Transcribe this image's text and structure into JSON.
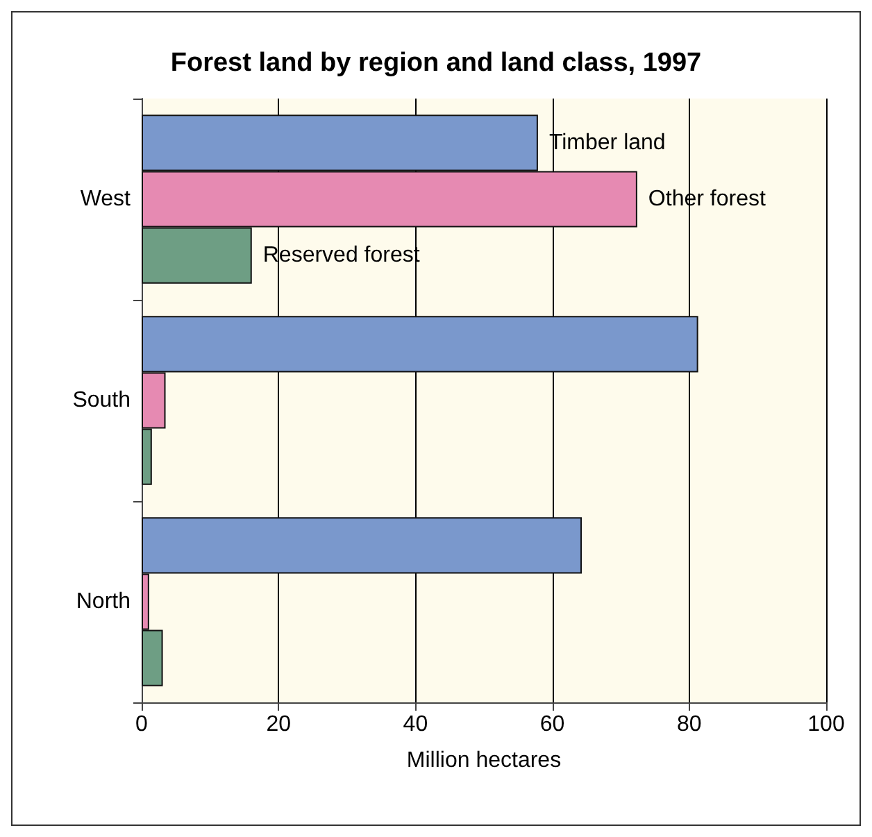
{
  "chart_data": {
    "type": "bar",
    "orientation": "horizontal",
    "title": "Forest land by region and land class, 1997",
    "xlabel": "Million hectares",
    "categories": [
      "West",
      "South",
      "North"
    ],
    "series": [
      {
        "name": "Timber land",
        "color": "#7a98cc",
        "values": [
          57.9,
          81.3,
          64.3
        ]
      },
      {
        "name": "Other forest",
        "color": "#e68ab2",
        "values": [
          72.4,
          3.5,
          1.1
        ]
      },
      {
        "name": "Reserved forest",
        "color": "#6e9e84",
        "values": [
          16.1,
          1.5,
          3.1
        ]
      }
    ],
    "xlim": [
      0,
      100
    ],
    "xticks": [
      0,
      20,
      40,
      60,
      80,
      100
    ],
    "grid": "x"
  }
}
